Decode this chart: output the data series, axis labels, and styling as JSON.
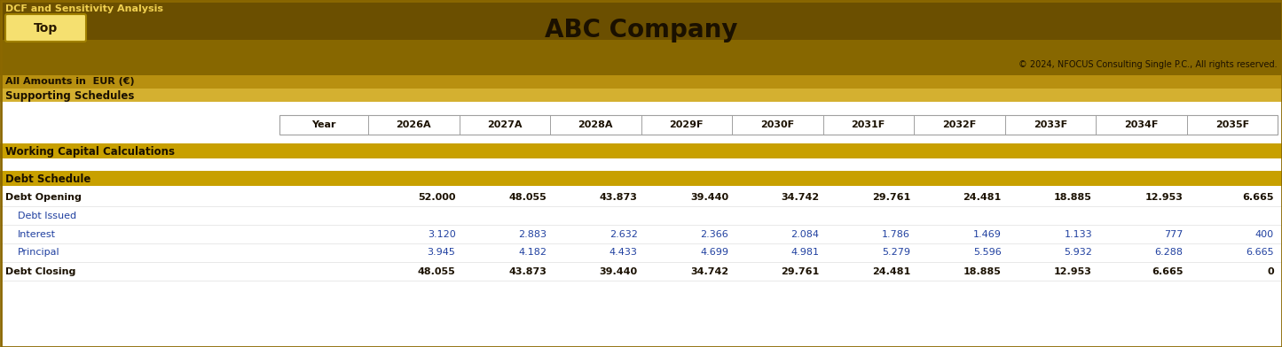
{
  "title": "ABC Company",
  "top_left_text": "DCF and Sensitivity Analysis",
  "all_amounts_text": "All Amounts in  EUR (€)",
  "supporting_schedules": "Supporting Schedules",
  "copyright": "© 2024, NFOCUS Consulting Single P.C., All rights reserved.",
  "button_text": "Top",
  "working_capital": "Working Capital Calculations",
  "debt_schedule": "Debt Schedule",
  "years": [
    "Year",
    "2026A",
    "2027A",
    "2028A",
    "2029F",
    "2030F",
    "2031F",
    "2032F",
    "2033F",
    "2034F",
    "2035F"
  ],
  "rows": [
    {
      "label": "Debt Opening",
      "bold": true,
      "indent": false,
      "values": [
        "52.000",
        "48.055",
        "43.873",
        "39.440",
        "34.742",
        "29.761",
        "24.481",
        "18.885",
        "12.953",
        "6.665"
      ]
    },
    {
      "label": "Debt Issued",
      "bold": false,
      "indent": true,
      "values": [
        "",
        "",
        "",
        "",
        "",
        "",
        "",
        "",
        "",
        ""
      ]
    },
    {
      "label": "Interest",
      "bold": false,
      "indent": true,
      "values": [
        "3.120",
        "2.883",
        "2.632",
        "2.366",
        "2.084",
        "1.786",
        "1.469",
        "1.133",
        "777",
        "400"
      ]
    },
    {
      "label": "Principal",
      "bold": false,
      "indent": true,
      "values": [
        "3.945",
        "4.182",
        "4.433",
        "4.699",
        "4.981",
        "5.279",
        "5.596",
        "5.932",
        "6.288",
        "6.665"
      ]
    },
    {
      "label": "Debt Closing",
      "bold": true,
      "indent": false,
      "values": [
        "48.055",
        "43.873",
        "39.440",
        "34.742",
        "29.761",
        "24.481",
        "18.885",
        "12.953",
        "6.665",
        "0"
      ]
    }
  ],
  "color_dark_brown": "#6B4F00",
  "color_mid_brown": "#8B6800",
  "color_gold_banner": "#C8A000",
  "color_yellow_banner": "#D4AA20",
  "color_supporting": "#E8C84A",
  "color_white": "#FFFFFF",
  "color_text_black": "#1a1000",
  "color_text_blue": "#2040A0",
  "color_btn_bg": "#F5E070",
  "color_btn_border": "#A08000",
  "color_border_outer": "#8B6800",
  "color_header_border": "#A0A0A0",
  "color_row_sep": "#D8D8D8"
}
